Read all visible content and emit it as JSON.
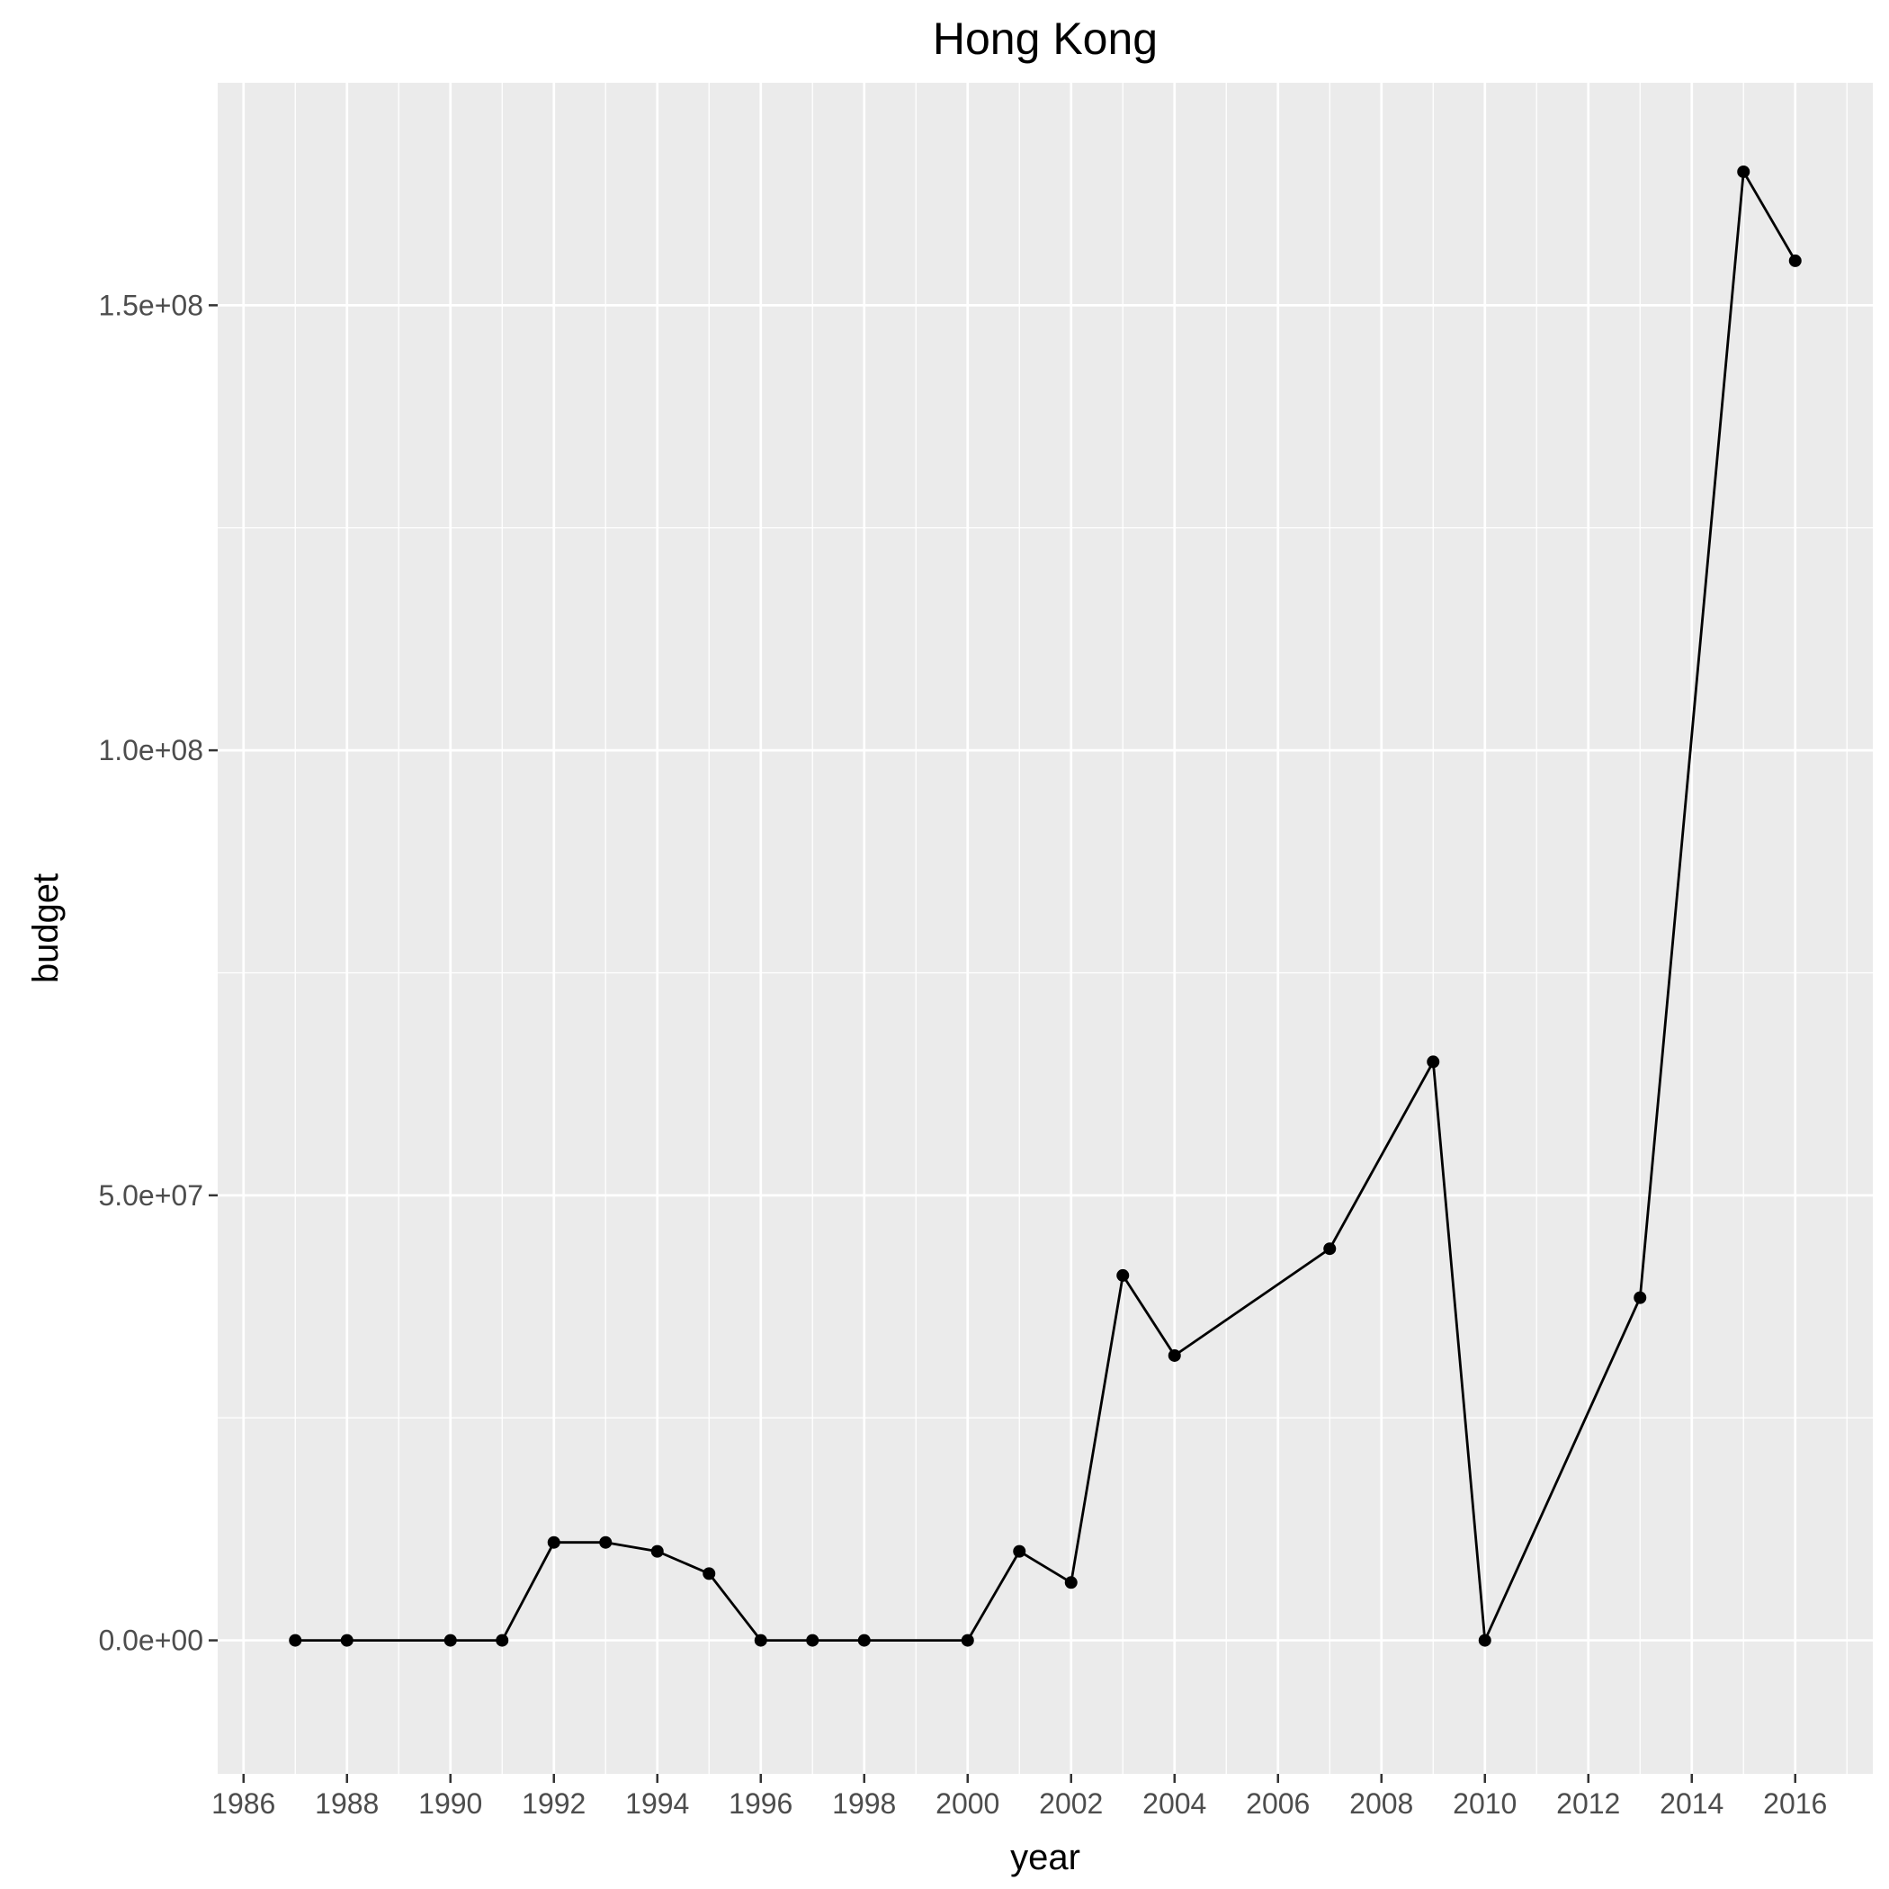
{
  "chart_data": {
    "type": "line",
    "title": "Hong Kong",
    "xlabel": "year",
    "ylabel": "budget",
    "xlim": [
      1985.5,
      2017.5
    ],
    "ylim": [
      -15000000,
      175000000
    ],
    "x_ticks": [
      1986,
      1988,
      1990,
      1992,
      1994,
      1996,
      1998,
      2000,
      2002,
      2004,
      2006,
      2008,
      2010,
      2012,
      2014,
      2016
    ],
    "x_tick_labels": [
      "1986",
      "1988",
      "1990",
      "1992",
      "1994",
      "1996",
      "1998",
      "2000",
      "2002",
      "2004",
      "2006",
      "2008",
      "2010",
      "2012",
      "2014",
      "2016"
    ],
    "y_ticks": [
      0,
      50000000,
      100000000,
      150000000
    ],
    "y_tick_labels": [
      "0.0e+00",
      "5.0e+07",
      "1.0e+08",
      "1.5e+08"
    ],
    "grid": true,
    "series": [
      {
        "x": [
          1987,
          1988,
          1990,
          1991,
          1992,
          1993,
          1994,
          1995,
          1996,
          1997,
          1998,
          2000,
          2001,
          2002,
          2003,
          2004,
          2007,
          2009,
          2010,
          2013,
          2015,
          2016
        ],
        "values": [
          0,
          0,
          0,
          0,
          11000000,
          11000000,
          10000000,
          7500000,
          0,
          0,
          0,
          0,
          10000000,
          6500000,
          41000000,
          32000000,
          44000000,
          65000000,
          0,
          38500000,
          165000000,
          155000000
        ]
      }
    ],
    "colors": {
      "panel": "#ebebeb",
      "grid": "#ffffff",
      "line": "#000000",
      "point": "#000000",
      "tick_text": "#4d4d4d",
      "tick_mark": "#333333"
    }
  }
}
